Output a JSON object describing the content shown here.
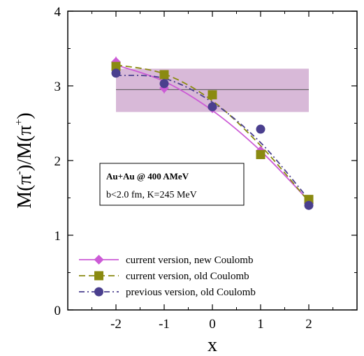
{
  "chart_data": {
    "type": "line",
    "xlabel": "x",
    "ylabel_parts": [
      "M(",
      "π",
      "-",
      ")/M(",
      "π",
      "+",
      ")"
    ],
    "xlim": [
      -3,
      3
    ],
    "ylim": [
      0,
      4
    ],
    "x_ticks": [
      "-2",
      "-1",
      "0",
      "1",
      "2"
    ],
    "y_ticks": [
      "0",
      "1",
      "2",
      "3",
      "4"
    ],
    "x_tick_values": [
      -2,
      -1,
      0,
      1,
      2
    ],
    "y_tick_values": [
      0,
      1,
      2,
      3,
      4
    ],
    "grid": false,
    "legend_position": "bottom-left",
    "band": {
      "y_center": 2.95,
      "y_low": 2.65,
      "y_high": 3.23,
      "x_range": [
        -2,
        2
      ],
      "color": "#d8b9d8"
    },
    "annotation": {
      "line1": "Au+Au @ 400 AMeV",
      "line2": "b<2.0 fm, K=245 MeV"
    },
    "series": [
      {
        "name": "current version, new Coulomb",
        "marker": "diamond",
        "color": "#cc5bd6",
        "line_style": "solid",
        "x": [
          -2,
          -1,
          0,
          1,
          2
        ],
        "y": [
          3.32,
          2.97,
          2.7,
          2.13,
          1.43
        ],
        "err": [
          0.07,
          0.07,
          0.05,
          0.04,
          0.03
        ],
        "fit": [
          3.28,
          3.06,
          2.67,
          2.13,
          1.46
        ]
      },
      {
        "name": "current version, old Coulomb",
        "marker": "square",
        "color": "#8a8a10",
        "line_style": "dashed",
        "x": [
          -2,
          -1,
          0,
          1,
          2
        ],
        "y": [
          3.26,
          3.15,
          2.88,
          2.08,
          1.48
        ],
        "err": [
          0.06,
          0.06,
          0.06,
          0.04,
          0.03
        ],
        "fit": [
          3.28,
          3.16,
          2.8,
          2.2,
          1.45
        ]
      },
      {
        "name": "previous version, old Coulomb",
        "marker": "circle",
        "color": "#4a3f8e",
        "line_style": "dashdot",
        "x": [
          -2,
          -1,
          0,
          1,
          2
        ],
        "y": [
          3.17,
          3.03,
          2.72,
          2.42,
          1.4
        ],
        "err": [
          0.05,
          0.05,
          0.05,
          0.04,
          0.03
        ],
        "fit": [
          3.14,
          3.1,
          2.78,
          2.24,
          1.48
        ]
      }
    ]
  }
}
